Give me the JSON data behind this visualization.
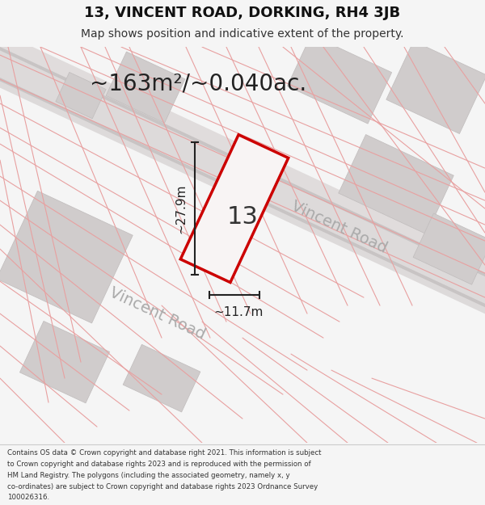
{
  "title": "13, VINCENT ROAD, DORKING, RH4 3JB",
  "subtitle": "Map shows position and indicative extent of the property.",
  "area_text": "~163m²/~0.040ac.",
  "width_text": "~11.7m",
  "height_text": "~27.9m",
  "number_text": "13",
  "road_text1": "Vincent Road",
  "road_text2": "Vincent Road",
  "footer_lines": [
    "Contains OS data © Crown copyright and database right 2021. This information is subject",
    "to Crown copyright and database rights 2023 and is reproduced with the permission of",
    "HM Land Registry. The polygons (including the associated geometry, namely x, y",
    "co-ordinates) are subject to Crown copyright and database rights 2023 Ordnance Survey",
    "100026316."
  ],
  "bg_color": "#f5f5f5",
  "map_bg": "#f0eeee",
  "property_edge": "#cc0000",
  "line_color": "#222222",
  "pink_color": "#e8a0a0",
  "building_gray": "#d0cccc",
  "road_gray": "#dddada",
  "road_label_color": "#aaaaaa",
  "footer_bg": "#ffffff",
  "footer_text_color": "#333333"
}
